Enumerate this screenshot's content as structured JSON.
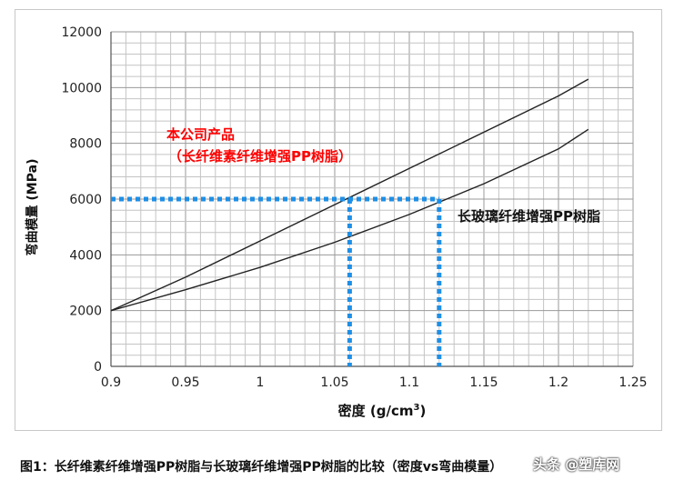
{
  "chart_data": {
    "type": "line",
    "ylabel": "弯曲模量 (MPa)",
    "xlabel_main": "密度 (g/cm",
    "xlabel_sup": "3",
    "xlabel_end": ")",
    "xlim": [
      0.9,
      1.25
    ],
    "ylim": [
      0,
      12000
    ],
    "x_ticks": [
      "0.9",
      "0.95",
      "1",
      "1.05",
      "1.1",
      "1.15",
      "1.2",
      "1.25"
    ],
    "y_ticks": [
      "0",
      "2000",
      "4000",
      "6000",
      "8000",
      "10000",
      "12000"
    ],
    "grid": true,
    "series": [
      {
        "name": "本公司产品（长纤维素纤维增强PP树脂）",
        "color": "#222222",
        "x": [
          0.9,
          0.95,
          1.0,
          1.05,
          1.1,
          1.15,
          1.2,
          1.22
        ],
        "y": [
          2000,
          3200,
          4500,
          5800,
          7100,
          8400,
          9700,
          10300
        ]
      },
      {
        "name": "长玻璃纤维增强PP树脂",
        "color": "#222222",
        "x": [
          0.9,
          0.95,
          1.0,
          1.05,
          1.1,
          1.15,
          1.2,
          1.22
        ],
        "y": [
          2000,
          2750,
          3550,
          4450,
          5450,
          6550,
          7800,
          8500
        ]
      }
    ],
    "annotation_red_line1": "本公司产品",
    "annotation_red_line2": "（长纤维素纤维增强PP树脂）",
    "annotation_red_color": "#ff0000",
    "annotation_black": "长玻璃纤维增强PP树脂",
    "reference_lines": {
      "color": "#1e8fe6",
      "y": 6000,
      "x_values": [
        1.06,
        1.12
      ]
    }
  },
  "caption": "图1：长纤维素纤维增强PP树脂与长玻璃纤维增强PP树脂的比较（密度vs弯曲模量）",
  "watermark": "头条 @塑库网"
}
